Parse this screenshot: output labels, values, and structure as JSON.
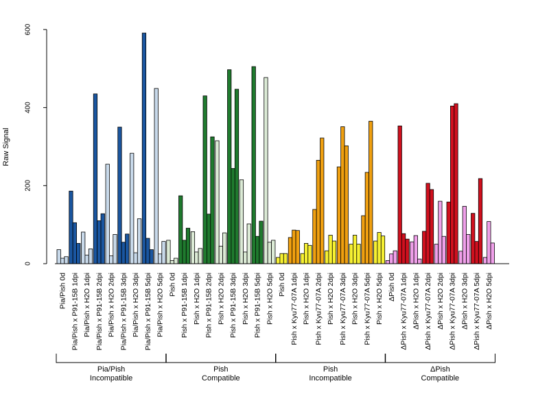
{
  "chart_data": {
    "type": "bar",
    "ylabel": "Raw Signal",
    "ylim": [
      0,
      600
    ],
    "yticks": [
      "0",
      "200",
      "400",
      "600"
    ],
    "bars_per_category": 3,
    "categories": [
      "Pia/Pish 0d",
      "Pia/Pish x P91-15B 1dpi",
      "Pia/Pish x H2O 1dpi",
      "Pia/Pish x P91-15B 2dpi",
      "Pia/Pish x H2O 2dpi",
      "Pia/Pish x P91-15B 3dpi",
      "Pia/Pish x H2O 3dpi",
      "Pia/Pish x P91-15B 5dpi",
      "Pia/Pish x H2O 5dpi",
      "Pish 0d",
      "Pish x P91-15B 1dpi",
      "Pish x H2O 1dpi",
      "Pish x P91-15B 2dpi",
      "Pish x H2O 2dpi",
      "Pish x P91-15B 3dpi",
      "Pish x H2O 3dpi",
      "Pish x P91-15B 5dpi",
      "Pish x H2O 5dpi",
      "Pish 0d",
      "Pish x Kyu77-07A 1dpi",
      "Pish x H2O 1dpi",
      "Pish x Kyu77-07A 2dpi",
      "Pish x H2O 2dpi",
      "Pish x Kyu77-07A 3dpi",
      "Pish x H2O 3dpi",
      "Pish x Kyu77-07A 5dpi",
      "Pish x H2O 5dpi",
      "ΔPish 0d",
      "ΔPish x Kyu77-07A 1dpi",
      "ΔPish x H2O 1dpi",
      "ΔPish x Kyu77-07A 2dpi",
      "ΔPish x H2O 2dpi",
      "ΔPish x Kyu77-07A 3dpi",
      "ΔPish x H2O 3dpi",
      "ΔPish x Kyu77-07A 5dpi",
      "ΔPish x H2O 5dpi"
    ],
    "values": [
      [
        36,
        14,
        18
      ],
      [
        186,
        105,
        52
      ],
      [
        81,
        22,
        38
      ],
      [
        435,
        110,
        128
      ],
      [
        255,
        20,
        75
      ],
      [
        350,
        55,
        76
      ],
      [
        283,
        28,
        115
      ],
      [
        591,
        65,
        36
      ],
      [
        449,
        25,
        57
      ],
      [
        60,
        8,
        14
      ],
      [
        174,
        60,
        91
      ],
      [
        82,
        30,
        39
      ],
      [
        430,
        127,
        325
      ],
      [
        315,
        45,
        79
      ],
      [
        497,
        244,
        447
      ],
      [
        215,
        30,
        102
      ],
      [
        505,
        70,
        109
      ],
      [
        477,
        55,
        60
      ],
      [
        16,
        26,
        26
      ],
      [
        67,
        86,
        85
      ],
      [
        26,
        52,
        47
      ],
      [
        139,
        265,
        322
      ],
      [
        33,
        73,
        58
      ],
      [
        248,
        351,
        302
      ],
      [
        50,
        73,
        50
      ],
      [
        123,
        234,
        365
      ],
      [
        58,
        80,
        71
      ],
      [
        8,
        25,
        33
      ],
      [
        353,
        77,
        63
      ],
      [
        56,
        72,
        12
      ],
      [
        83,
        206,
        190
      ],
      [
        50,
        160,
        70
      ],
      [
        158,
        404,
        410
      ],
      [
        32,
        147,
        75
      ],
      [
        129,
        57,
        218
      ],
      [
        16,
        108,
        53
      ]
    ],
    "groups": [
      {
        "line1": "Pia/Pish",
        "line2": "Incompatible",
        "start": 0,
        "end": 8
      },
      {
        "line1": "Pish",
        "line2": "Compatible",
        "start": 9,
        "end": 17
      },
      {
        "line1": "Pish",
        "line2": "Incompatible",
        "start": 18,
        "end": 26
      },
      {
        "line1": "ΔPish",
        "line2": "Compatible",
        "start": 27,
        "end": 35
      }
    ],
    "colors": {
      "blue_dark": "#1a56a0",
      "blue_light": "#c8d9ea",
      "green_dark": "#1f7a2e",
      "green_light": "#dcebd6",
      "orange": "#f0a010",
      "yellow": "#f6f032",
      "red": "#d0101e",
      "pink": "#f0a0ea"
    },
    "category_colors": [
      "blue_light",
      "blue_dark",
      "blue_light",
      "blue_dark",
      "blue_light",
      "blue_dark",
      "blue_light",
      "blue_dark",
      "blue_light",
      "green_light",
      "green_dark",
      "green_light",
      "green_dark",
      "green_light",
      "green_dark",
      "green_light",
      "green_dark",
      "green_light",
      "yellow",
      "orange",
      "yellow",
      "orange",
      "yellow",
      "orange",
      "yellow",
      "orange",
      "yellow",
      "pink",
      "red",
      "pink",
      "red",
      "pink",
      "red",
      "pink",
      "red",
      "pink"
    ]
  }
}
